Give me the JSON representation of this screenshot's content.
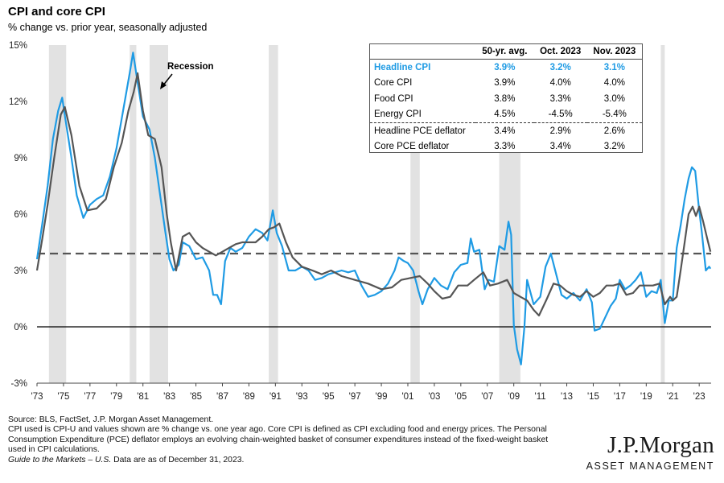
{
  "title": "CPI and core CPI",
  "subtitle": "% change vs. prior year, seasonally adjusted",
  "annotation": "Recession",
  "table": {
    "headers": [
      "",
      "50-yr. avg.",
      "Oct. 2023",
      "Nov. 2023"
    ],
    "rows": [
      {
        "label": "Headline CPI",
        "values": [
          "3.9%",
          "3.2%",
          "3.1%"
        ],
        "highlight": true
      },
      {
        "label": "Core CPI",
        "values": [
          "3.9%",
          "4.0%",
          "4.0%"
        ]
      },
      {
        "label": "Food CPI",
        "values": [
          "3.8%",
          "3.3%",
          "3.0%"
        ]
      },
      {
        "label": "Energy CPI",
        "values": [
          "4.5%",
          "-4.5%",
          "-5.4%"
        ]
      },
      {
        "label": "Headline PCE deflator",
        "values": [
          "3.4%",
          "2.9%",
          "2.6%"
        ]
      },
      {
        "label": "Core PCE deflator",
        "values": [
          "3.3%",
          "3.4%",
          "3.2%"
        ]
      }
    ]
  },
  "footer": {
    "source": "Source: BLS, FactSet, J.P. Morgan Asset Management.",
    "note1": "CPI used is CPI-U and values shown are % change vs. one year ago. Core CPI is defined as CPI excluding food and energy prices. The Personal",
    "note2": "Consumption Expenditure (PCE) deflator employs an evolving chain-weighted basket of consumer expenditures instead of the fixed-weight basket",
    "note3": "used in CPI calculations.",
    "guide": "Guide to the Markets – U.S.",
    "date": " Data are as of December 31, 2023."
  },
  "logo": {
    "brand": "J.P.Morgan",
    "sub": "ASSET MANAGEMENT"
  },
  "colors": {
    "headline": "#1f9be4",
    "core": "#555555",
    "recession": "#e2e2e2",
    "zero_line": "#000000",
    "avg_line": "#555555"
  },
  "chart_data": {
    "type": "line",
    "ylim": [
      -3,
      15
    ],
    "yticks": [
      -3,
      0,
      3,
      6,
      9,
      12,
      15
    ],
    "ytick_labels": [
      "-3%",
      "0%",
      "3%",
      "6%",
      "9%",
      "12%",
      "15%"
    ],
    "xlim": [
      1973,
      2023.9
    ],
    "xticks": [
      1973,
      1975,
      1977,
      1979,
      1981,
      1983,
      1985,
      1987,
      1989,
      1991,
      1993,
      1995,
      1997,
      1999,
      2001,
      2003,
      2005,
      2007,
      2009,
      2011,
      2013,
      2015,
      2017,
      2019,
      2021,
      2023
    ],
    "xtick_labels": [
      "'73",
      "'75",
      "'77",
      "'79",
      "'81",
      "'83",
      "'85",
      "'87",
      "'89",
      "'91",
      "'93",
      "'95",
      "'97",
      "'99",
      "'01",
      "'03",
      "'05",
      "'07",
      "'09",
      "'11",
      "'13",
      "'15",
      "'17",
      "'19",
      "'21",
      "'23"
    ],
    "recessions": [
      [
        1973.9,
        1975.2
      ],
      [
        1980.0,
        1980.5
      ],
      [
        1981.5,
        1982.9
      ],
      [
        1990.5,
        1991.2
      ],
      [
        2001.2,
        2001.9
      ],
      [
        2007.9,
        2009.5
      ],
      [
        2020.1,
        2020.4
      ]
    ],
    "reference_line": 3.9,
    "series": [
      {
        "name": "Headline CPI",
        "x": [
          1973.0,
          1973.4,
          1973.8,
          1974.2,
          1974.6,
          1974.9,
          1975.2,
          1975.6,
          1976.0,
          1976.5,
          1977.0,
          1977.5,
          1978.0,
          1978.5,
          1979.0,
          1979.5,
          1980.0,
          1980.25,
          1980.6,
          1981.0,
          1981.5,
          1981.9,
          1982.3,
          1982.7,
          1983.0,
          1983.3,
          1983.7,
          1984.0,
          1984.5,
          1985.0,
          1985.5,
          1986.0,
          1986.3,
          1986.6,
          1986.9,
          1987.2,
          1987.6,
          1988.0,
          1988.5,
          1989.0,
          1989.5,
          1990.0,
          1990.4,
          1990.8,
          1991.1,
          1991.5,
          1992.0,
          1992.5,
          1993.0,
          1993.5,
          1994.0,
          1994.5,
          1995.0,
          1995.5,
          1996.0,
          1996.5,
          1997.0,
          1997.5,
          1998.0,
          1998.5,
          1999.0,
          1999.5,
          2000.0,
          2000.3,
          2000.7,
          2001.0,
          2001.4,
          2001.8,
          2002.1,
          2002.5,
          2003.0,
          2003.5,
          2004.0,
          2004.5,
          2005.0,
          2005.5,
          2005.75,
          2006.0,
          2006.4,
          2006.8,
          2007.1,
          2007.5,
          2007.9,
          2008.3,
          2008.6,
          2008.8,
          2009.0,
          2009.25,
          2009.55,
          2009.8,
          2010.0,
          2010.5,
          2011.0,
          2011.4,
          2011.8,
          2012.2,
          2012.6,
          2013.0,
          2013.5,
          2014.0,
          2014.5,
          2014.9,
          2015.1,
          2015.5,
          2015.9,
          2016.3,
          2016.7,
          2017.0,
          2017.4,
          2017.8,
          2018.2,
          2018.6,
          2019.0,
          2019.4,
          2019.8,
          2020.1,
          2020.4,
          2020.7,
          2021.0,
          2021.3,
          2021.6,
          2021.9,
          2022.2,
          2022.45,
          2022.7,
          2022.95,
          2023.2,
          2023.5,
          2023.75,
          2023.85
        ],
        "y": [
          3.6,
          5.5,
          7.5,
          10.0,
          11.5,
          12.2,
          10.8,
          9.0,
          7.0,
          5.8,
          6.5,
          6.8,
          7.0,
          8.0,
          9.5,
          11.5,
          13.5,
          14.6,
          13.0,
          11.2,
          10.5,
          9.0,
          7.0,
          5.0,
          3.6,
          3.0,
          3.3,
          4.5,
          4.3,
          3.6,
          3.7,
          3.0,
          1.7,
          1.7,
          1.2,
          3.5,
          4.2,
          4.0,
          4.2,
          4.8,
          5.2,
          5.0,
          4.6,
          6.2,
          5.0,
          4.3,
          3.0,
          3.0,
          3.2,
          3.0,
          2.5,
          2.6,
          2.8,
          2.9,
          3.0,
          2.9,
          3.0,
          2.2,
          1.6,
          1.7,
          1.9,
          2.3,
          3.0,
          3.7,
          3.5,
          3.4,
          3.0,
          1.9,
          1.2,
          2.0,
          2.6,
          2.2,
          2.0,
          2.9,
          3.3,
          3.4,
          4.7,
          4.0,
          4.1,
          2.0,
          2.5,
          2.4,
          4.3,
          4.1,
          5.6,
          4.9,
          0.1,
          -1.2,
          -2.0,
          0.0,
          2.5,
          1.2,
          1.6,
          3.2,
          3.9,
          2.8,
          1.7,
          1.5,
          1.8,
          1.4,
          2.0,
          1.3,
          -0.2,
          -0.1,
          0.5,
          1.1,
          1.5,
          2.5,
          2.0,
          2.2,
          2.5,
          2.9,
          1.6,
          1.9,
          1.8,
          2.5,
          0.2,
          1.4,
          1.4,
          4.2,
          5.4,
          6.8,
          7.9,
          8.5,
          8.3,
          6.5,
          5.0,
          3.0,
          3.2,
          3.1
        ]
      },
      {
        "name": "Core CPI",
        "x": [
          1973.0,
          1973.4,
          1973.8,
          1974.3,
          1974.8,
          1975.1,
          1975.6,
          1976.2,
          1976.8,
          1977.5,
          1978.2,
          1978.8,
          1979.4,
          1979.9,
          1980.3,
          1980.6,
          1981.0,
          1981.4,
          1981.9,
          1982.4,
          1982.8,
          1983.1,
          1983.5,
          1984.0,
          1984.5,
          1985.0,
          1985.5,
          1986.0,
          1986.5,
          1987.0,
          1987.5,
          1988.0,
          1988.5,
          1989.0,
          1989.5,
          1990.0,
          1990.5,
          1990.9,
          1991.3,
          1991.8,
          1992.3,
          1993.0,
          1993.8,
          1994.5,
          1995.2,
          1996.0,
          1997.0,
          1998.0,
          1999.0,
          1999.8,
          2000.5,
          2001.2,
          2001.9,
          2002.5,
          2003.0,
          2003.6,
          2004.2,
          2004.8,
          2005.5,
          2006.0,
          2006.7,
          2007.2,
          2007.8,
          2008.5,
          2009.0,
          2009.5,
          2010.0,
          2010.5,
          2010.9,
          2011.5,
          2012.0,
          2012.5,
          2013.0,
          2013.5,
          2014.0,
          2014.5,
          2015.0,
          2015.5,
          2016.0,
          2016.5,
          2017.0,
          2017.5,
          2018.0,
          2018.5,
          2019.0,
          2019.5,
          2020.0,
          2020.4,
          2020.8,
          2021.0,
          2021.3,
          2021.6,
          2021.9,
          2022.2,
          2022.5,
          2022.75,
          2023.0,
          2023.3,
          2023.6,
          2023.85
        ],
        "y": [
          3.0,
          4.7,
          6.5,
          9.0,
          11.3,
          11.7,
          10.2,
          7.5,
          6.2,
          6.3,
          6.8,
          8.5,
          9.8,
          11.5,
          12.5,
          13.5,
          11.5,
          10.2,
          10.0,
          8.5,
          6.0,
          4.5,
          3.0,
          4.8,
          5.0,
          4.5,
          4.2,
          4.0,
          3.8,
          4.0,
          4.2,
          4.4,
          4.5,
          4.5,
          4.5,
          4.8,
          5.2,
          5.3,
          5.5,
          4.5,
          3.7,
          3.2,
          3.0,
          2.8,
          3.0,
          2.7,
          2.5,
          2.3,
          2.0,
          2.1,
          2.5,
          2.6,
          2.7,
          2.3,
          1.9,
          1.5,
          1.6,
          2.2,
          2.2,
          2.5,
          2.9,
          2.2,
          2.3,
          2.5,
          1.8,
          1.6,
          1.4,
          0.9,
          0.6,
          1.5,
          2.3,
          2.2,
          1.9,
          1.7,
          1.6,
          1.9,
          1.6,
          1.8,
          2.2,
          2.2,
          2.3,
          1.7,
          1.8,
          2.2,
          2.2,
          2.2,
          2.3,
          1.2,
          1.6,
          1.4,
          1.6,
          3.0,
          4.5,
          6.0,
          6.4,
          5.9,
          6.4,
          5.6,
          4.7,
          4.0
        ]
      }
    ]
  }
}
